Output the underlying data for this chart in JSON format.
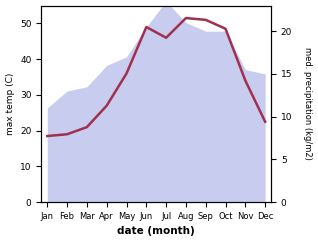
{
  "months": [
    "Jan",
    "Feb",
    "Mar",
    "Apr",
    "May",
    "Jun",
    "Jul",
    "Aug",
    "Sep",
    "Oct",
    "Nov",
    "Dec"
  ],
  "temp": [
    18.5,
    19.0,
    21.0,
    27.0,
    36.0,
    49.0,
    46.0,
    51.5,
    51.0,
    48.5,
    34.0,
    22.5
  ],
  "precip": [
    11.0,
    13.0,
    13.5,
    16.0,
    17.0,
    20.5,
    23.5,
    21.0,
    20.0,
    20.0,
    15.5,
    15.0
  ],
  "temp_color": "#a03050",
  "precip_fill_color": "#c8ccee",
  "precip_line_color": "#c8ccee",
  "ylabel_left": "max temp (C)",
  "ylabel_right": "med. precipitation (kg/m2)",
  "xlabel": "date (month)",
  "ylim_left": [
    0,
    55
  ],
  "ylim_right": [
    0,
    23
  ],
  "yticks_left": [
    0,
    10,
    20,
    30,
    40,
    50
  ],
  "yticks_right": [
    0,
    5,
    10,
    15,
    20
  ],
  "bg_color": "#ffffff"
}
